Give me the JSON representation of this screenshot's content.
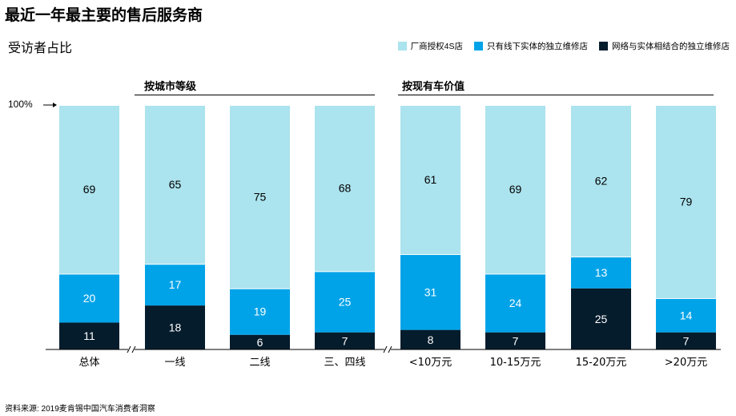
{
  "title": "最近一年最主要的售后服务商",
  "subtitle": "受访者占比",
  "legend": [
    {
      "label": "厂商授权4S店",
      "color": "#ABE3EE"
    },
    {
      "label": "只有线下实体的独立维修店",
      "color": "#00A3E8"
    },
    {
      "label": "网络与实体相结合的独立维修店",
      "color": "#051C2C"
    }
  ],
  "groups": [
    {
      "label": "按城市等级"
    },
    {
      "label": "按现有车价值"
    }
  ],
  "reference_label": "100%",
  "source": "资料来源: 2019麦肯锡中国汽车消费者洞察",
  "chart_data": {
    "type": "bar",
    "stacked": true,
    "categories": [
      "总体",
      "一线",
      "二线",
      "三、四线",
      "<10万元",
      "10-15万元",
      "15-20万元",
      ">20万元"
    ],
    "series": [
      {
        "name": "网络与实体相结合的独立维修店",
        "color": "#051C2C",
        "label_color": "#FFFFFF",
        "values": [
          11,
          18,
          6,
          7,
          8,
          7,
          25,
          7
        ]
      },
      {
        "name": "只有线下实体的独立维修店",
        "color": "#00A3E8",
        "label_color": "#FFFFFF",
        "values": [
          20,
          17,
          19,
          25,
          31,
          24,
          13,
          14
        ]
      },
      {
        "name": "厂商授权4S店",
        "color": "#ABE3EE",
        "label_color": "#000000",
        "values": [
          69,
          65,
          75,
          68,
          61,
          69,
          62,
          79
        ]
      }
    ],
    "ylim": [
      0,
      100
    ],
    "axis_breaks": [
      "after-category-1",
      "after-category-4"
    ]
  }
}
